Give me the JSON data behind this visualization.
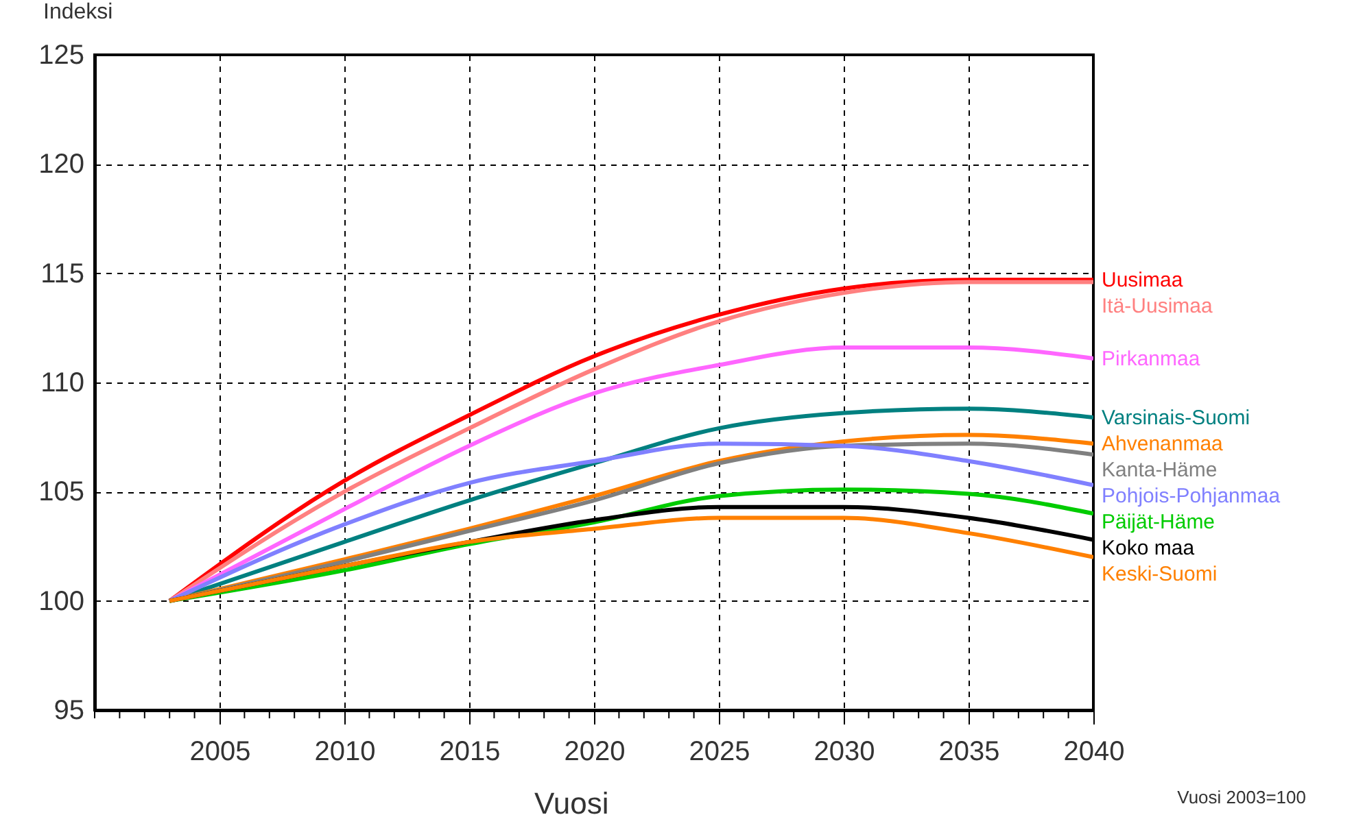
{
  "chart_data": {
    "type": "line",
    "xlabel": "Vuosi",
    "ylabel": "Indeksi",
    "annotations": [
      "Vuosi 2003=100"
    ],
    "x": [
      2003,
      2010,
      2015,
      2020,
      2025,
      2030,
      2035,
      2040
    ],
    "xlim": [
      2000,
      2040
    ],
    "xticks": [
      {
        "value": 2000,
        "label": null
      },
      {
        "value": 2001,
        "label": null
      },
      {
        "value": 2002,
        "label": null
      },
      {
        "value": 2003,
        "label": null
      },
      {
        "value": 2004,
        "label": null
      },
      {
        "value": 2005,
        "label": "2005"
      },
      {
        "value": 2006,
        "label": null
      },
      {
        "value": 2007,
        "label": null
      },
      {
        "value": 2008,
        "label": null
      },
      {
        "value": 2009,
        "label": null
      },
      {
        "value": 2010,
        "label": "2010"
      },
      {
        "value": 2011,
        "label": null
      },
      {
        "value": 2012,
        "label": null
      },
      {
        "value": 2013,
        "label": null
      },
      {
        "value": 2014,
        "label": null
      },
      {
        "value": 2015,
        "label": "2015"
      },
      {
        "value": 2016,
        "label": null
      },
      {
        "value": 2017,
        "label": null
      },
      {
        "value": 2018,
        "label": null
      },
      {
        "value": 2019,
        "label": null
      },
      {
        "value": 2020,
        "label": "2020"
      },
      {
        "value": 2021,
        "label": null
      },
      {
        "value": 2022,
        "label": null
      },
      {
        "value": 2023,
        "label": null
      },
      {
        "value": 2024,
        "label": null
      },
      {
        "value": 2025,
        "label": "2025"
      },
      {
        "value": 2026,
        "label": null
      },
      {
        "value": 2027,
        "label": null
      },
      {
        "value": 2028,
        "label": null
      },
      {
        "value": 2029,
        "label": null
      },
      {
        "value": 2030,
        "label": "2030"
      },
      {
        "value": 2031,
        "label": null
      },
      {
        "value": 2032,
        "label": null
      },
      {
        "value": 2033,
        "label": null
      },
      {
        "value": 2034,
        "label": null
      },
      {
        "value": 2035,
        "label": "2035"
      },
      {
        "value": 2036,
        "label": null
      },
      {
        "value": 2037,
        "label": null
      },
      {
        "value": 2038,
        "label": null
      },
      {
        "value": 2039,
        "label": null
      },
      {
        "value": 2040,
        "label": "2040"
      }
    ],
    "ylim": [
      95,
      125
    ],
    "yticks": [
      95,
      100,
      105,
      110,
      115,
      120,
      125
    ],
    "grid": true,
    "legend": false,
    "series": [
      {
        "name": "Uusimaa",
        "color": "#ff0000",
        "values": [
          100,
          105.5,
          108.5,
          111.2,
          113.1,
          114.3,
          114.7,
          114.7
        ]
      },
      {
        "name": "Itä-Uusimaa",
        "color": "#ff8080",
        "values": [
          100,
          105.0,
          107.9,
          110.6,
          112.8,
          114.1,
          114.6,
          114.6
        ]
      },
      {
        "name": "Pirkanmaa",
        "color": "#ff66ff",
        "values": [
          100,
          104.2,
          107.1,
          109.5,
          110.8,
          111.6,
          111.6,
          111.1
        ]
      },
      {
        "name": "Varsinais-Suomi",
        "color": "#008080",
        "values": [
          100,
          102.7,
          104.6,
          106.3,
          107.9,
          108.6,
          108.8,
          108.4
        ]
      },
      {
        "name": "Ahvenanmaa",
        "color": "#ff8000",
        "values": [
          100,
          101.9,
          103.3,
          104.8,
          106.4,
          107.3,
          107.6,
          107.2
        ]
      },
      {
        "name": "Kanta-Häme",
        "color": "#808080",
        "values": [
          100,
          101.8,
          103.2,
          104.6,
          106.3,
          107.1,
          107.2,
          106.7
        ]
      },
      {
        "name": "Pohjois-Pohjanmaa",
        "color": "#8080ff",
        "values": [
          100,
          103.5,
          105.4,
          106.4,
          107.2,
          107.1,
          106.4,
          105.3
        ]
      },
      {
        "name": "Päijät-Häme",
        "color": "#00cc00",
        "values": [
          100,
          101.4,
          102.6,
          103.6,
          104.8,
          105.1,
          104.9,
          104.0
        ]
      },
      {
        "name": "Koko maa",
        "color": "#000000",
        "values": [
          100,
          101.6,
          102.7,
          103.7,
          104.3,
          104.3,
          103.8,
          102.8
        ]
      },
      {
        "name": "Keski-Suomi",
        "color": "#ff8000",
        "values": [
          100,
          101.6,
          102.7,
          103.3,
          103.8,
          103.8,
          103.1,
          102.0
        ]
      }
    ]
  }
}
